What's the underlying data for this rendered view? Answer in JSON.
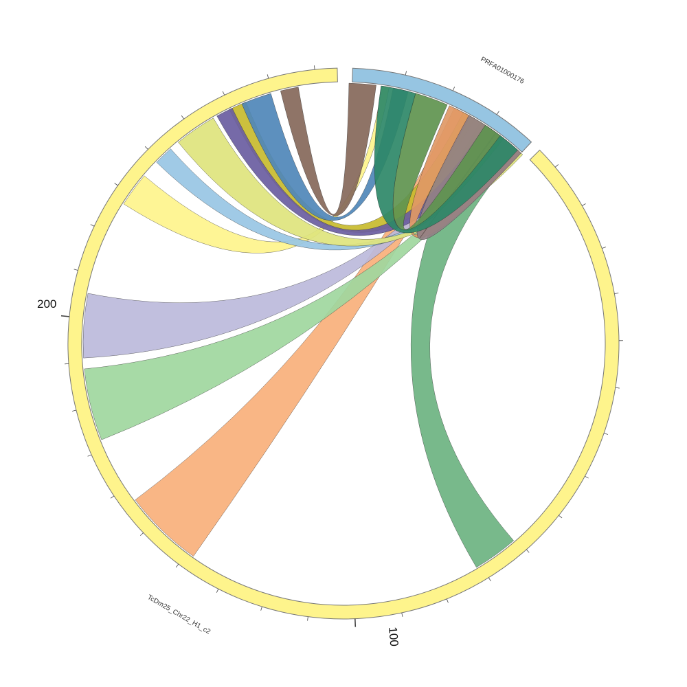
{
  "chart_data": {
    "type": "chord",
    "title": "",
    "segments": [
      {
        "name": "PRFA01000176",
        "color": "#96c5e2"
      },
      {
        "name": "TcDm25_Chr22_H1_c2",
        "color": "#fef48c"
      }
    ],
    "tick_labels": [
      "100",
      "200"
    ],
    "ribbons": [
      {
        "color": "#6cb381",
        "from": "PRFA01000176",
        "to": "TcDm25_Chr22_H1_c2"
      },
      {
        "color": "#f8b07b",
        "from": "PRFA01000176",
        "to": "TcDm25_Chr22_H1_c2"
      },
      {
        "color": "#a0d79e",
        "from": "PRFA01000176",
        "to": "TcDm25_Chr22_H1_c2"
      },
      {
        "color": "#bcbadb",
        "from": "PRFA01000176",
        "to": "TcDm25_Chr22_H1_c2"
      },
      {
        "color": "#fef48c",
        "from": "PRFA01000176",
        "to": "TcDm25_Chr22_H1_c2"
      },
      {
        "color": "#98c6e4",
        "from": "PRFA01000176",
        "to": "TcDm25_Chr22_H1_c2"
      },
      {
        "color": "#dee47d",
        "from": "PRFA01000176",
        "to": "TcDm25_Chr22_H1_c2"
      },
      {
        "color": "#c8bb2e",
        "from": "PRFA01000176",
        "to": "TcDm25_Chr22_H1_c2"
      },
      {
        "color": "#6a5da1",
        "from": "PRFA01000176",
        "to": "TcDm25_Chr22_H1_c2"
      },
      {
        "color": "#4f87b8",
        "from": "PRFA01000176",
        "to": "TcDm25_Chr22_H1_c2"
      },
      {
        "color": "#85685a",
        "from": "PRFA01000176",
        "to": "TcDm25_Chr22_H1_c2"
      },
      {
        "color": "#e09865",
        "from": "PRFA01000176",
        "to": "PRFA01000176"
      },
      {
        "color": "#938086",
        "from": "PRFA01000176",
        "to": "PRFA01000176"
      },
      {
        "color": "#5f944f",
        "from": "PRFA01000176",
        "to": "PRFA01000176"
      },
      {
        "color": "#2e8868",
        "from": "PRFA01000176",
        "to": "PRFA01000176"
      }
    ]
  }
}
